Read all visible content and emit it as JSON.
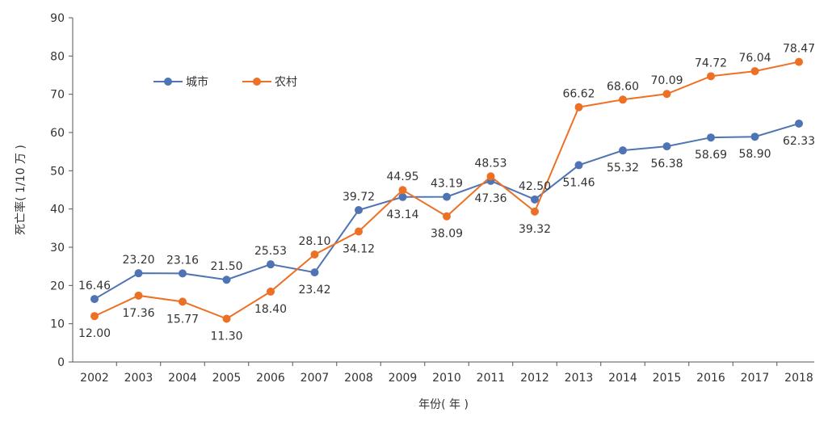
{
  "chart_data": {
    "type": "line",
    "title": "",
    "xlabel": "年份( 年 )",
    "ylabel": "死亡率( 1/10 万 )",
    "ylim": [
      0,
      90
    ],
    "y_ticks": [
      "0",
      "10",
      "20",
      "30",
      "40",
      "50",
      "60",
      "70",
      "80",
      "90"
    ],
    "grid": false,
    "legend_position": "top-left",
    "categories": [
      "2002",
      "2003",
      "2004",
      "2005",
      "2006",
      "2007",
      "2008",
      "2009",
      "2010",
      "2011",
      "2012",
      "2013",
      "2014",
      "2015",
      "2016",
      "2017",
      "2018"
    ],
    "series": [
      {
        "name": "城市",
        "color": "#4f74b3",
        "values": [
          16.46,
          23.2,
          23.16,
          21.5,
          25.53,
          23.42,
          39.72,
          43.14,
          43.19,
          47.36,
          42.5,
          51.46,
          55.32,
          56.38,
          58.69,
          58.9,
          62.33
        ],
        "labels": [
          "16.46",
          "23.20",
          "23.16",
          "21.50",
          "25.53",
          "23.42",
          "39.72",
          "43.14",
          "43.19",
          "47.36",
          "42.50",
          "51.46",
          "55.32",
          "56.38",
          "58.69",
          "58.90",
          "62.33"
        ]
      },
      {
        "name": "农村",
        "color": "#ed7125",
        "values": [
          12.0,
          17.36,
          15.77,
          11.3,
          18.4,
          28.1,
          34.12,
          44.95,
          38.09,
          48.53,
          39.32,
          66.62,
          68.6,
          70.09,
          74.72,
          76.04,
          78.47
        ],
        "labels": [
          "12.00",
          "17.36",
          "15.77",
          "11.30",
          "18.40",
          "28.10",
          "34.12",
          "44.95",
          "38.09",
          "48.53",
          "39.32",
          "66.62",
          "68.60",
          "70.09",
          "74.72",
          "76.04",
          "78.47"
        ]
      }
    ]
  }
}
